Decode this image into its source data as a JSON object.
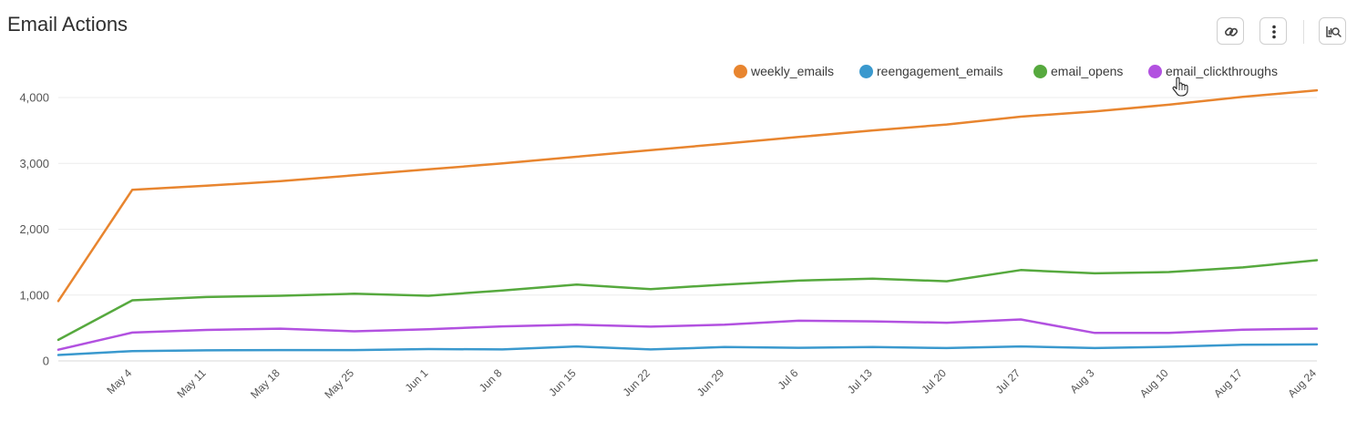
{
  "header": {
    "title": "Email Actions",
    "buttons": [
      {
        "name": "copy-link-button",
        "icon": "link-icon"
      },
      {
        "name": "more-options-button",
        "icon": "vertical-dots-icon"
      },
      {
        "name": "explore-chart-button",
        "icon": "chart-search-icon"
      }
    ]
  },
  "legend": {
    "placement": "top-right",
    "items": [
      {
        "label": "weekly_emails",
        "color": "#E8852F"
      },
      {
        "label": "reengagement_emails",
        "color": "#3A99CE"
      },
      {
        "label": "email_opens",
        "color": "#56A93E"
      },
      {
        "label": "email_clickthroughs",
        "color": "#B251E0"
      }
    ]
  },
  "chart_data": {
    "type": "line",
    "title": "Email Actions",
    "xlabel": "",
    "ylabel": "",
    "ylim": [
      0,
      4000
    ],
    "yticks": [
      0,
      1000,
      2000,
      3000,
      4000
    ],
    "ytick_labels": [
      "0",
      "1,000",
      "2,000",
      "3,000",
      "4,000"
    ],
    "grid": true,
    "x": [
      "2014-04-28",
      "2014-05-05",
      "2014-05-12",
      "2014-05-19",
      "2014-05-26",
      "2014-06-02",
      "2014-06-09",
      "2014-06-16",
      "2014-06-23",
      "2014-06-30",
      "2014-07-07",
      "2014-07-14",
      "2014-07-21",
      "2014-07-28",
      "2014-08-04",
      "2014-08-11",
      "2014-08-18",
      "2014-08-25"
    ],
    "x_tick_labels": [
      "May 4",
      "May 11",
      "May 18",
      "May 25",
      "Jun 1",
      "Jun 8",
      "Jun 15",
      "Jun 22",
      "Jun 29",
      "Jul 6",
      "Jul 13",
      "Jul 20",
      "Jul 27",
      "Aug 3",
      "Aug 10",
      "Aug 17",
      "Aug 24"
    ],
    "series": [
      {
        "name": "weekly_emails",
        "color": "#E8852F",
        "values": [
          910,
          2600,
          2660,
          2730,
          2820,
          2910,
          3000,
          3100,
          3200,
          3300,
          3400,
          3500,
          3590,
          3710,
          3790,
          3890,
          4010,
          4110
        ]
      },
      {
        "name": "reengagement_emails",
        "color": "#3A99CE",
        "values": [
          90,
          150,
          160,
          165,
          165,
          180,
          175,
          220,
          175,
          210,
          200,
          210,
          195,
          220,
          195,
          215,
          245,
          250
        ]
      },
      {
        "name": "email_opens",
        "color": "#56A93E",
        "values": [
          320,
          920,
          970,
          990,
          1020,
          990,
          1070,
          1160,
          1090,
          1160,
          1220,
          1250,
          1210,
          1380,
          1330,
          1350,
          1420,
          1530
        ]
      },
      {
        "name": "email_clickthroughs",
        "color": "#B251E0",
        "values": [
          170,
          430,
          470,
          490,
          450,
          480,
          525,
          550,
          520,
          550,
          610,
          600,
          580,
          630,
          425,
          425,
          475,
          490
        ]
      }
    ]
  }
}
